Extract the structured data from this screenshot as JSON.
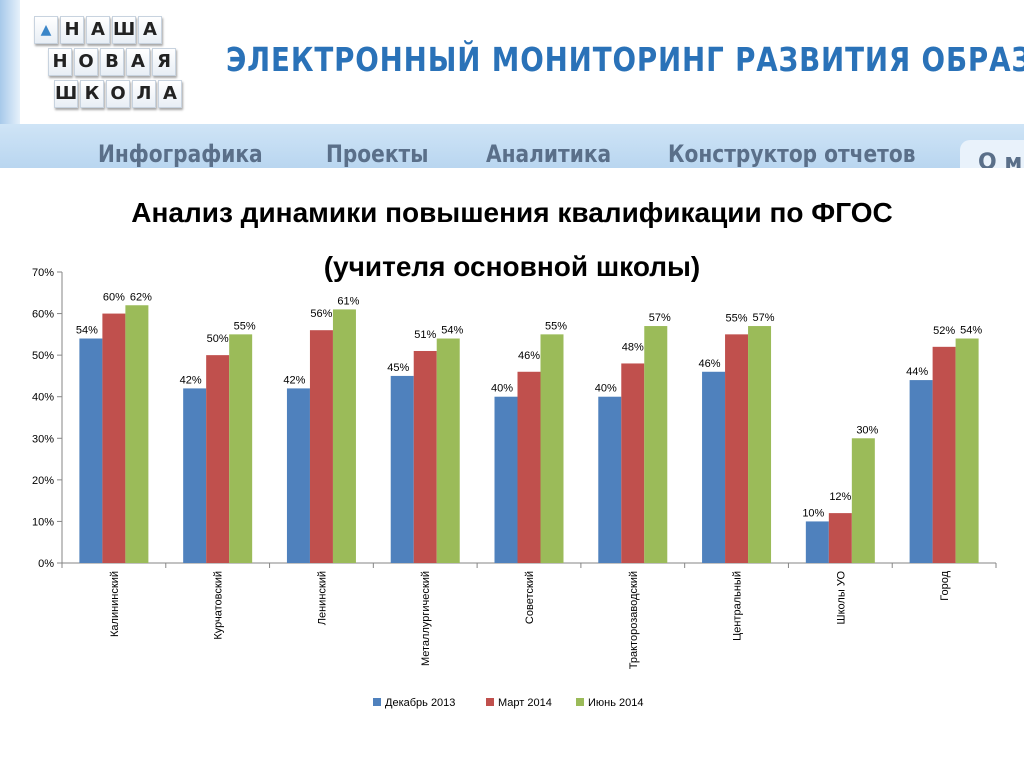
{
  "header": {
    "logo_letters": [
      [
        "Н",
        "А",
        "Ш",
        "А"
      ],
      [
        "Н",
        "О",
        "В",
        "А",
        "Я"
      ],
      [
        "Ш",
        "К",
        "О",
        "Л",
        "А"
      ]
    ],
    "site_title": "ЭЛЕКТРОННЫЙ МОНИТОРИНГ РАЗВИТИЯ ОБРАЗОВАНИЯ",
    "nav": [
      "Инфографика",
      "Проекты",
      "Аналитика",
      "Конструктор отчетов"
    ],
    "nav_more": "О м"
  },
  "colors": {
    "series": [
      "#4f81bd",
      "#c0504d",
      "#9bbb59"
    ],
    "title_blue": "#2a72b8"
  },
  "chart_data": {
    "type": "bar",
    "title_lines": [
      "Анализ динамики повышения квалификации по ФГОС",
      "(учителя основной школы)"
    ],
    "categories": [
      "Калининский",
      "Курчатовский",
      "Ленинский",
      "Металлургический",
      "Советский",
      "Тракторозаводский",
      "Центральный",
      "Школы УО",
      "Город"
    ],
    "series": [
      {
        "name": "Декабрь 2013",
        "values": [
          54,
          42,
          42,
          45,
          40,
          40,
          46,
          10,
          44
        ]
      },
      {
        "name": "Март 2014",
        "values": [
          60,
          50,
          56,
          51,
          46,
          48,
          55,
          12,
          52
        ]
      },
      {
        "name": "Июнь 2014",
        "values": [
          62,
          55,
          61,
          54,
          55,
          57,
          57,
          30,
          54
        ]
      }
    ],
    "ylim": [
      0,
      70
    ],
    "yticks": [
      0,
      10,
      20,
      30,
      40,
      50,
      60,
      70
    ],
    "tick_suffix": "%",
    "legend_position": "bottom",
    "grid": false
  }
}
